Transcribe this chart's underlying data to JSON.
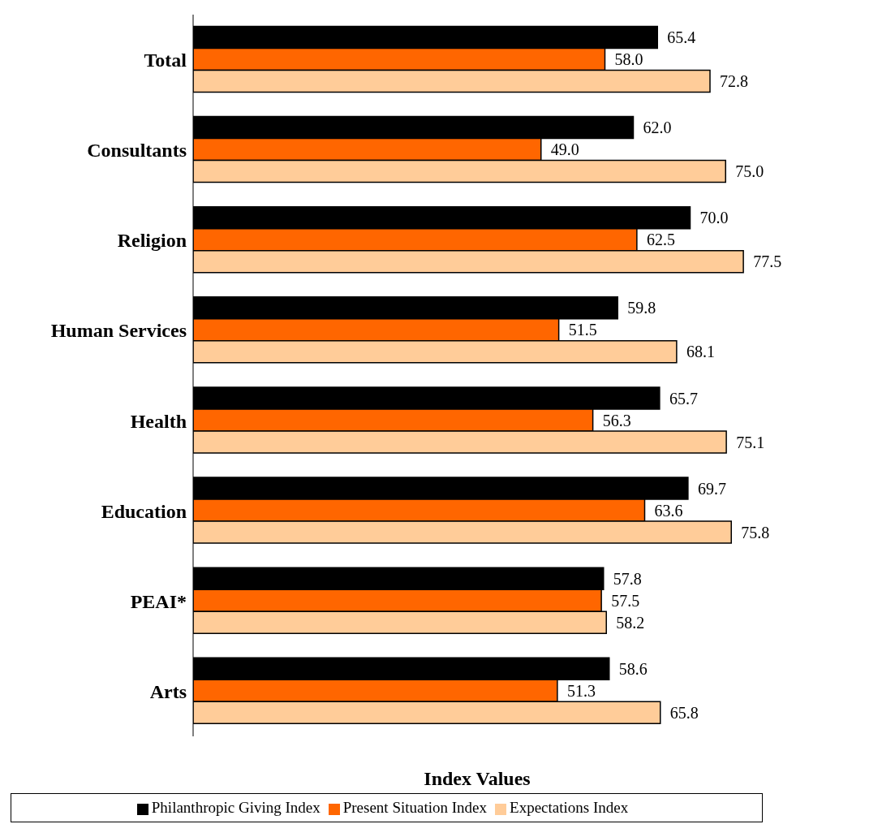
{
  "chart_data": {
    "type": "bar",
    "orientation": "horizontal",
    "xlabel": "Index Values",
    "categories": [
      "Total",
      "Consultants",
      "Religion",
      "Human Services",
      "Health",
      "Education",
      "PEAI*",
      "Arts"
    ],
    "series": [
      {
        "name": "Philanthropic Giving Index",
        "color": "#000000",
        "values": [
          65.4,
          62.0,
          70.0,
          59.8,
          65.7,
          69.7,
          57.8,
          58.6
        ],
        "value_labels": [
          "65.4",
          "62.0",
          "70.0",
          "59.8",
          "65.7",
          "69.7",
          "57.8",
          "58.6"
        ]
      },
      {
        "name": "Present Situation Index",
        "color": "#ff6600",
        "values": [
          58.0,
          49.0,
          62.5,
          51.5,
          56.3,
          63.6,
          57.5,
          51.3
        ],
        "value_labels": [
          "58.0",
          "49.0",
          "62.5",
          "51.5",
          "56.3",
          "63.6",
          "57.5",
          "51.3"
        ]
      },
      {
        "name": "Expectations Index",
        "color": "#ffcc99",
        "values": [
          72.8,
          75.0,
          77.5,
          68.1,
          75.1,
          75.8,
          58.2,
          65.8
        ],
        "value_labels": [
          "72.8",
          "75.0",
          "77.5",
          "68.1",
          "75.1",
          "75.8",
          "58.2",
          "65.8"
        ]
      }
    ],
    "tick_labels": "y",
    "legend": "bottom"
  }
}
